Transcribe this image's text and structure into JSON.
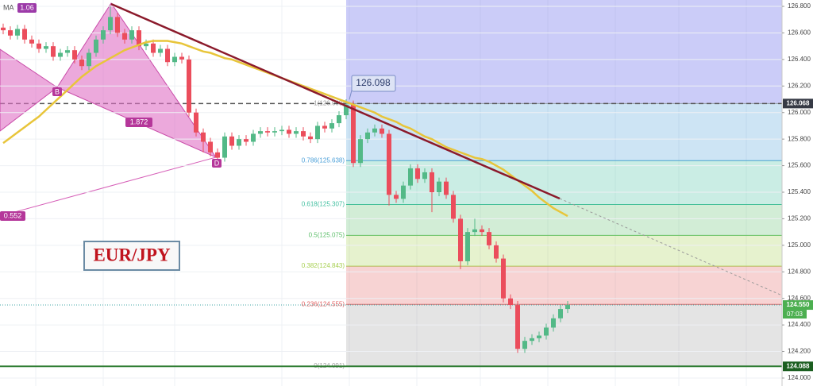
{
  "chart_data": {
    "type": "candlestick",
    "title": "EUR/JPY",
    "indicator": "MA",
    "indicator_value": "1.06",
    "pattern_labels": {
      "b": "B",
      "d": "D",
      "ratio_bd": "1.872",
      "ratio_xd": "0.552"
    },
    "callout": {
      "value": 126.098,
      "label": "126.098"
    },
    "countdown": "07:03",
    "up_color": "#53b987",
    "down_color": "#eb4d5c",
    "ma_color": "#e8c53a",
    "ylim": [
      123.94,
      126.848
    ],
    "yticks": [
      {
        "value": 124.0,
        "label": "124.000"
      },
      {
        "value": 124.2,
        "label": "124.200"
      },
      {
        "value": 124.4,
        "label": "124.400"
      },
      {
        "value": 124.6,
        "label": "124.600"
      },
      {
        "value": 124.8,
        "label": "124.800"
      },
      {
        "value": 125.0,
        "label": "125.000"
      },
      {
        "value": 125.2,
        "label": "125.200"
      },
      {
        "value": 125.4,
        "label": "125.400"
      },
      {
        "value": 125.6,
        "label": "125.600"
      },
      {
        "value": 125.8,
        "label": "125.800"
      },
      {
        "value": 126.0,
        "label": "126.000"
      },
      {
        "value": 126.2,
        "label": "126.200"
      },
      {
        "value": 126.4,
        "label": "126.400"
      },
      {
        "value": 126.6,
        "label": "126.600"
      },
      {
        "value": 126.8,
        "label": "126.800"
      }
    ],
    "grid": true,
    "fib_top_color": "#7c80ee",
    "fib_levels": [
      {
        "value": 126.068,
        "label": "1(126.068)",
        "color": "#9e9e9e"
      },
      {
        "value": 125.638,
        "label": "0.786(125.638)",
        "color": "#4a9fd8"
      },
      {
        "value": 125.307,
        "label": "0.618(125.307)",
        "color": "#3fbf9f"
      },
      {
        "value": 125.075,
        "label": "0.5(125.075)",
        "color": "#5cbf6a"
      },
      {
        "value": 124.843,
        "label": "0.382(124.843)",
        "color": "#a6cf4f"
      },
      {
        "value": 124.555,
        "label": "0.236(124.555)",
        "color": "#e26060"
      },
      {
        "value": 124.091,
        "label": "0(124.091)",
        "color": "#9e9e9e"
      }
    ],
    "price_labels": [
      {
        "value": 126.068,
        "label": "126.068",
        "color": "#363a45"
      },
      {
        "value": 124.55,
        "label": "124.550",
        "color": "#4caf50"
      },
      {
        "value": 124.088,
        "label": "124.088",
        "color": "#1b5e20"
      }
    ],
    "categories": [
      null,
      null,
      null,
      null,
      null,
      null,
      null,
      null,
      null,
      null,
      null,
      null,
      null,
      null,
      null,
      null,
      null,
      null,
      null,
      null,
      null,
      null,
      null,
      null,
      null,
      null,
      null,
      null,
      null,
      null,
      null,
      null,
      null,
      null,
      null,
      null,
      null,
      null,
      null,
      null,
      null,
      null,
      null,
      null,
      null,
      null,
      null,
      null,
      null,
      null,
      null,
      null,
      null,
      null,
      null,
      null,
      null,
      null,
      null,
      null,
      null,
      null,
      null,
      null,
      null,
      null,
      null,
      null,
      null,
      null,
      null,
      null,
      null,
      null,
      null,
      null,
      null,
      null,
      null,
      null
    ],
    "open": [
      126.64,
      126.62,
      126.58,
      126.63,
      126.55,
      126.52,
      126.48,
      126.5,
      126.42,
      126.45,
      126.47,
      126.4,
      126.35,
      126.45,
      126.55,
      126.62,
      126.72,
      126.6,
      126.55,
      126.62,
      126.5,
      126.52,
      126.45,
      126.48,
      126.38,
      126.42,
      126.4,
      126.0,
      125.85,
      125.78,
      125.7,
      125.66,
      125.82,
      125.75,
      125.8,
      125.78,
      125.84,
      125.86,
      125.85,
      125.86,
      125.87,
      125.84,
      125.86,
      125.82,
      125.8,
      125.9,
      125.88,
      125.92,
      125.98,
      126.06,
      125.62,
      125.8,
      125.85,
      125.88,
      125.84,
      125.38,
      125.35,
      125.45,
      125.58,
      125.5,
      125.55,
      125.4,
      125.48,
      125.38,
      125.2,
      124.88,
      125.1,
      125.12,
      125.1,
      125.0,
      124.9,
      124.6,
      124.55,
      124.22,
      124.28,
      124.3,
      124.32,
      124.38,
      124.45,
      124.52
    ],
    "high": [
      126.67,
      126.65,
      126.66,
      126.66,
      126.58,
      126.55,
      126.53,
      126.53,
      126.48,
      126.5,
      126.5,
      126.43,
      126.48,
      126.58,
      126.65,
      126.8,
      126.75,
      126.63,
      126.65,
      126.65,
      126.55,
      126.55,
      126.51,
      126.51,
      126.45,
      126.45,
      126.43,
      126.03,
      125.88,
      125.81,
      125.73,
      125.85,
      125.85,
      125.83,
      125.83,
      125.87,
      125.89,
      125.89,
      125.89,
      125.9,
      125.9,
      125.89,
      125.89,
      125.85,
      125.93,
      125.93,
      125.95,
      126.01,
      126.1,
      126.09,
      125.83,
      125.88,
      125.91,
      125.91,
      125.87,
      125.41,
      125.48,
      125.61,
      125.61,
      125.58,
      125.58,
      125.51,
      125.51,
      125.41,
      125.23,
      125.13,
      125.2,
      125.15,
      125.13,
      125.03,
      124.93,
      124.63,
      124.58,
      124.31,
      124.33,
      124.35,
      124.41,
      124.48,
      124.55,
      124.58
    ],
    "low": [
      126.59,
      126.55,
      126.55,
      126.52,
      126.49,
      126.45,
      126.45,
      126.39,
      126.39,
      126.42,
      126.37,
      126.32,
      126.32,
      126.42,
      126.52,
      126.59,
      126.57,
      126.52,
      126.52,
      126.47,
      126.47,
      126.42,
      126.42,
      126.35,
      126.35,
      126.37,
      125.97,
      125.82,
      125.7,
      125.67,
      125.63,
      125.63,
      125.72,
      125.72,
      125.75,
      125.75,
      125.81,
      125.82,
      125.82,
      125.83,
      125.81,
      125.81,
      125.79,
      125.77,
      125.77,
      125.85,
      125.85,
      125.89,
      125.95,
      125.59,
      125.59,
      125.77,
      125.82,
      125.81,
      125.3,
      125.32,
      125.32,
      125.42,
      125.47,
      125.47,
      125.25,
      125.37,
      125.35,
      125.17,
      124.82,
      124.85,
      125.07,
      125.07,
      124.97,
      124.87,
      124.57,
      124.52,
      124.19,
      124.19,
      124.25,
      124.27,
      124.29,
      124.35,
      124.42,
      124.49
    ],
    "close": [
      126.62,
      126.58,
      126.63,
      126.55,
      126.52,
      126.48,
      126.5,
      126.42,
      126.45,
      126.47,
      126.4,
      126.35,
      126.45,
      126.55,
      126.62,
      126.72,
      126.6,
      126.55,
      126.62,
      126.5,
      126.52,
      126.45,
      126.48,
      126.38,
      126.42,
      126.4,
      126.0,
      125.85,
      125.78,
      125.7,
      125.66,
      125.82,
      125.75,
      125.8,
      125.78,
      125.84,
      125.86,
      125.85,
      125.86,
      125.87,
      125.84,
      125.86,
      125.82,
      125.8,
      125.9,
      125.88,
      125.92,
      125.98,
      126.06,
      125.62,
      125.8,
      125.85,
      125.88,
      125.84,
      125.38,
      125.35,
      125.45,
      125.58,
      125.5,
      125.55,
      125.4,
      125.48,
      125.38,
      125.2,
      124.88,
      125.1,
      125.12,
      125.1,
      125.0,
      124.9,
      124.6,
      124.55,
      124.22,
      124.28,
      124.3,
      124.32,
      124.38,
      124.45,
      124.52,
      124.55
    ],
    "ma": [
      125.77,
      125.81,
      125.85,
      125.89,
      125.93,
      125.97,
      126.02,
      126.07,
      126.12,
      126.17,
      126.22,
      126.27,
      126.31,
      126.35,
      126.38,
      126.41,
      126.44,
      126.47,
      126.49,
      126.51,
      126.53,
      126.54,
      126.54,
      126.54,
      126.53,
      126.52,
      126.5,
      126.48,
      126.46,
      126.45,
      126.43,
      126.41,
      126.4,
      126.38,
      126.36,
      126.34,
      126.32,
      126.3,
      126.28,
      126.26,
      126.24,
      126.22,
      126.2,
      126.18,
      126.16,
      126.14,
      126.12,
      126.1,
      126.08,
      126.06,
      126.04,
      126.02,
      126.0,
      125.97,
      125.95,
      125.93,
      125.9,
      125.88,
      125.85,
      125.82,
      125.8,
      125.77,
      125.74,
      125.72,
      125.7,
      125.68,
      125.66,
      125.65,
      125.63,
      125.6,
      125.57,
      125.53,
      125.49,
      125.45,
      125.41,
      125.36,
      125.32,
      125.28,
      125.25,
      125.22
    ]
  }
}
